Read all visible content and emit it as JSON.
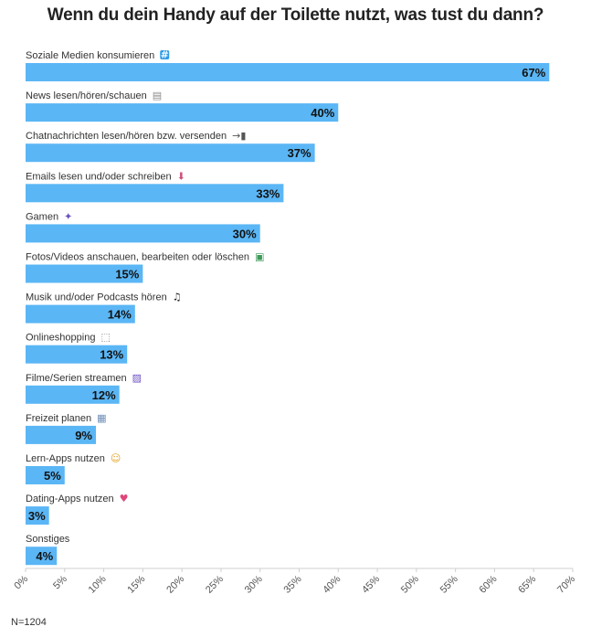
{
  "chart_data": {
    "type": "bar",
    "orientation": "horizontal",
    "title": "Wenn du dein Handy auf der Toilette nutzt, was tust du dann?",
    "categories": [
      "Soziale Medien konsumieren",
      "News lesen/hören/schauen",
      "Chatnachrichten lesen/hören bzw. versenden",
      "Emails lesen und/oder schreiben",
      "Gamen",
      "Fotos/Videos anschauen, bearbeiten oder löschen",
      "Musik und/oder Podcasts hören",
      "Onlineshopping",
      "Filme/Serien streamen",
      "Freizeit planen",
      "Lern-Apps nutzen",
      "Dating-Apps nutzen",
      "Sonstiges"
    ],
    "icons": [
      "hashtag-icon",
      "newspaper-icon",
      "mobile-arrow-icon",
      "inbox-tray-icon",
      "alien-monster-icon",
      "picture-icon",
      "music-note-icon",
      "shopping-cart-icon",
      "clapper-board-icon",
      "calendar-icon",
      "thinking-face-icon",
      "heart-arrow-icon",
      ""
    ],
    "values": [
      67,
      40,
      37,
      33,
      30,
      15,
      14,
      13,
      12,
      9,
      5,
      3,
      4
    ],
    "value_labels": [
      "67%",
      "40%",
      "37%",
      "33%",
      "30%",
      "15%",
      "14%",
      "13%",
      "12%",
      "9%",
      "5%",
      "3%",
      "4%"
    ],
    "xlim": [
      0,
      70
    ],
    "xticks": [
      "0%",
      "5%",
      "10%",
      "15%",
      "20%",
      "25%",
      "30%",
      "35%",
      "40%",
      "45%",
      "50%",
      "55%",
      "60%",
      "65%",
      "70%"
    ],
    "grid": false,
    "bar_color": "#5bb6f5",
    "note": "N=1204"
  }
}
